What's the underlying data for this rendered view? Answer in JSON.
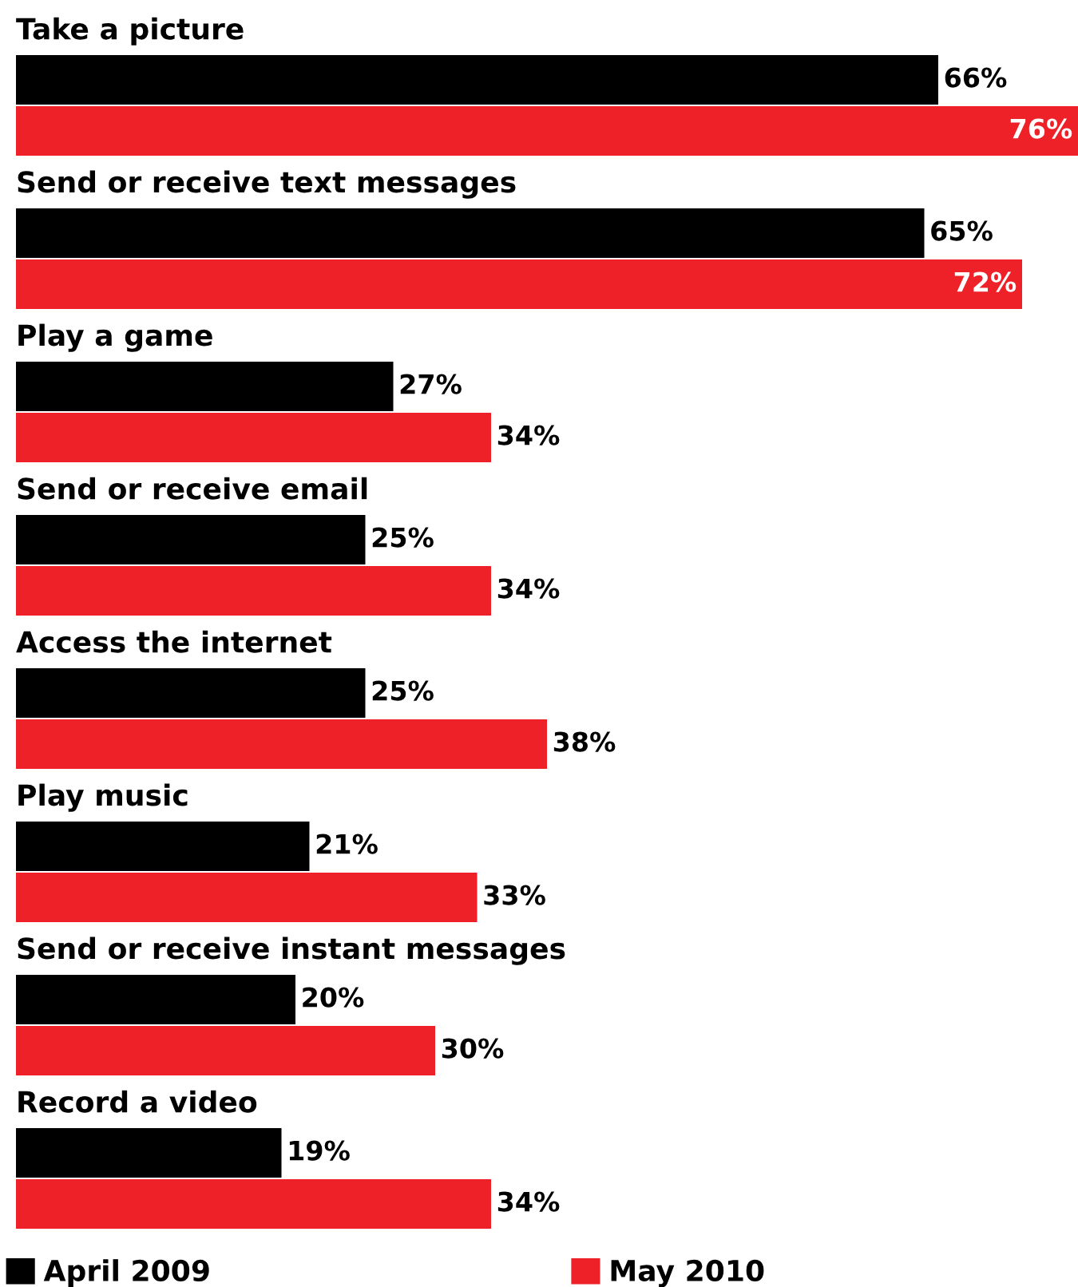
{
  "chart_data": {
    "type": "bar",
    "orientation": "horizontal",
    "categories": [
      "Take a picture",
      "Send or receive text messages",
      "Play a game",
      "Send or receive email",
      "Access the internet",
      "Play music",
      "Send or receive instant messages",
      "Record a video"
    ],
    "series": [
      {
        "name": "April 2009",
        "color": "#000000",
        "values": [
          66,
          65,
          27,
          25,
          25,
          21,
          20,
          19
        ],
        "value_labels": [
          "66%",
          "65%",
          "27%",
          "25%",
          "25%",
          "21%",
          "20%",
          "19%"
        ]
      },
      {
        "name": "May 2010",
        "color": "#ee2028",
        "values": [
          76,
          72,
          34,
          34,
          38,
          33,
          30,
          34
        ],
        "value_labels": [
          "76%",
          "72%",
          "34%",
          "34%",
          "38%",
          "33%",
          "30%",
          "34%"
        ]
      }
    ],
    "legend": "bottom"
  }
}
